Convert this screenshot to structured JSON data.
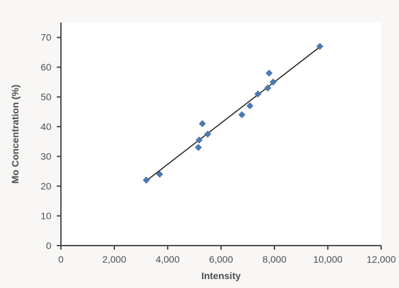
{
  "chart_data": {
    "type": "scatter",
    "title": "",
    "xlabel": "Intensity",
    "ylabel": "Mo Concentration (%)",
    "xlim": [
      0,
      12000
    ],
    "ylim": [
      0,
      75
    ],
    "x_ticks": [
      0,
      2000,
      4000,
      6000,
      8000,
      10000,
      12000
    ],
    "x_tick_labels": [
      "0",
      "2,000",
      "4,000",
      "6,000",
      "8,000",
      "10,000",
      "12,000"
    ],
    "y_ticks": [
      0,
      10,
      20,
      30,
      40,
      50,
      60,
      70
    ],
    "y_tick_labels": [
      "0",
      "10",
      "20",
      "30",
      "40",
      "50",
      "60",
      "70"
    ],
    "grid": false,
    "series": [
      {
        "points": [
          {
            "x": 3200,
            "y": 22
          },
          {
            "x": 3700,
            "y": 24
          },
          {
            "x": 5150,
            "y": 33
          },
          {
            "x": 5180,
            "y": 35.5
          },
          {
            "x": 5300,
            "y": 41
          },
          {
            "x": 5500,
            "y": 37.5
          },
          {
            "x": 6780,
            "y": 44
          },
          {
            "x": 7080,
            "y": 47
          },
          {
            "x": 7380,
            "y": 51
          },
          {
            "x": 7750,
            "y": 53
          },
          {
            "x": 7800,
            "y": 58
          },
          {
            "x": 7950,
            "y": 55
          },
          {
            "x": 9700,
            "y": 67
          }
        ],
        "color": "#4a7bb5",
        "marker": "diamond"
      }
    ],
    "trendline": {
      "x": [
        3200,
        9700
      ],
      "y": [
        21.8,
        66.8
      ],
      "color": "#1a1a1a"
    }
  }
}
